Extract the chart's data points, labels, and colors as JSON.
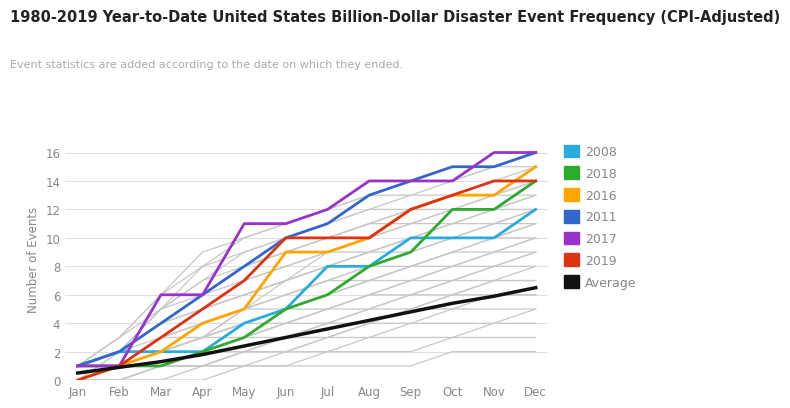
{
  "title": "1980-2019 Year-to-Date United States Billion-Dollar Disaster Event Frequency (CPI-Adjusted)",
  "subtitle": "Event statistics are added according to the date on which they ended.",
  "ylabel": "Number of Events",
  "months": [
    "Jan",
    "Feb",
    "Mar",
    "Apr",
    "May",
    "Jun",
    "Jul",
    "Aug",
    "Sep",
    "Oct",
    "Nov",
    "Dec"
  ],
  "highlighted": {
    "2008": {
      "color": "#29ABDE",
      "values": [
        1,
        2,
        2,
        2,
        4,
        5,
        8,
        8,
        10,
        10,
        10,
        12
      ]
    },
    "2018": {
      "color": "#2EAA2E",
      "values": [
        1,
        1,
        1,
        2,
        3,
        5,
        6,
        8,
        9,
        12,
        12,
        14
      ]
    },
    "2016": {
      "color": "#FFA500",
      "values": [
        0,
        1,
        2,
        4,
        5,
        9,
        9,
        10,
        12,
        13,
        13,
        15
      ]
    },
    "2011": {
      "color": "#3366CC",
      "values": [
        1,
        2,
        4,
        6,
        8,
        10,
        11,
        13,
        14,
        15,
        15,
        16
      ]
    },
    "2017": {
      "color": "#9932CC",
      "values": [
        1,
        1,
        6,
        6,
        11,
        11,
        12,
        14,
        14,
        14,
        16,
        16
      ]
    },
    "2019": {
      "color": "#DD3311",
      "values": [
        0,
        1,
        3,
        5,
        7,
        10,
        10,
        10,
        12,
        13,
        14,
        14
      ]
    },
    "Average": {
      "color": "#111111",
      "values": [
        0.5,
        0.9,
        1.3,
        1.8,
        2.4,
        3.0,
        3.6,
        4.2,
        4.8,
        5.4,
        5.9,
        6.5
      ]
    }
  },
  "background_lines": [
    [
      0,
      0,
      0,
      0,
      1,
      1,
      1,
      1,
      1,
      2,
      2,
      2
    ],
    [
      0,
      0,
      0,
      1,
      1,
      1,
      2,
      2,
      2,
      3,
      3,
      3
    ],
    [
      0,
      0,
      1,
      1,
      1,
      2,
      2,
      3,
      3,
      3,
      4,
      4
    ],
    [
      0,
      0,
      1,
      1,
      2,
      2,
      3,
      3,
      4,
      4,
      4,
      5
    ],
    [
      0,
      0,
      1,
      1,
      2,
      2,
      3,
      4,
      4,
      5,
      5,
      5
    ],
    [
      0,
      0,
      1,
      1,
      2,
      3,
      3,
      4,
      5,
      5,
      6,
      6
    ],
    [
      0,
      1,
      1,
      2,
      2,
      3,
      4,
      4,
      5,
      6,
      6,
      6
    ],
    [
      0,
      1,
      1,
      2,
      3,
      3,
      4,
      5,
      5,
      6,
      7,
      7
    ],
    [
      0,
      1,
      1,
      2,
      3,
      4,
      4,
      5,
      6,
      6,
      7,
      7
    ],
    [
      0,
      1,
      2,
      2,
      3,
      4,
      5,
      5,
      6,
      7,
      7,
      8
    ],
    [
      0,
      1,
      2,
      3,
      3,
      4,
      5,
      6,
      6,
      7,
      8,
      8
    ],
    [
      0,
      1,
      2,
      3,
      4,
      4,
      5,
      6,
      7,
      7,
      8,
      9
    ],
    [
      0,
      1,
      2,
      3,
      4,
      5,
      5,
      6,
      7,
      8,
      8,
      9
    ],
    [
      0,
      1,
      2,
      3,
      4,
      5,
      6,
      7,
      7,
      8,
      9,
      9
    ],
    [
      0,
      1,
      2,
      3,
      4,
      5,
      6,
      7,
      8,
      8,
      9,
      10
    ],
    [
      0,
      1,
      2,
      3,
      5,
      5,
      6,
      7,
      8,
      9,
      9,
      10
    ],
    [
      0,
      1,
      3,
      3,
      5,
      6,
      7,
      7,
      8,
      9,
      10,
      10
    ],
    [
      0,
      1,
      3,
      4,
      5,
      6,
      7,
      8,
      8,
      9,
      10,
      11
    ],
    [
      0,
      1,
      3,
      4,
      5,
      6,
      7,
      8,
      9,
      10,
      10,
      11
    ],
    [
      0,
      1,
      3,
      4,
      5,
      7,
      8,
      9,
      9,
      10,
      11,
      11
    ],
    [
      0,
      1,
      3,
      5,
      6,
      7,
      8,
      9,
      10,
      10,
      11,
      12
    ],
    [
      0,
      2,
      3,
      5,
      6,
      7,
      8,
      9,
      10,
      11,
      11,
      12
    ],
    [
      0,
      2,
      4,
      5,
      6,
      7,
      9,
      9,
      10,
      11,
      12,
      12
    ],
    [
      1,
      2,
      4,
      5,
      7,
      8,
      9,
      10,
      11,
      11,
      12,
      13
    ],
    [
      1,
      2,
      4,
      6,
      7,
      8,
      9,
      10,
      11,
      12,
      12,
      13
    ],
    [
      1,
      2,
      4,
      6,
      8,
      9,
      10,
      11,
      11,
      12,
      13,
      13
    ],
    [
      1,
      2,
      5,
      6,
      8,
      9,
      10,
      11,
      12,
      12,
      13,
      14
    ],
    [
      1,
      2,
      5,
      7,
      8,
      9,
      10,
      11,
      12,
      13,
      13,
      14
    ],
    [
      1,
      2,
      5,
      7,
      9,
      10,
      11,
      12,
      12,
      13,
      14,
      14
    ],
    [
      1,
      3,
      5,
      8,
      9,
      10,
      11,
      12,
      13,
      13,
      14,
      15
    ],
    [
      1,
      3,
      6,
      8,
      10,
      11,
      12,
      13,
      13,
      14,
      15,
      15
    ],
    [
      1,
      3,
      6,
      9,
      10,
      11,
      12,
      13,
      14,
      14,
      15,
      16
    ]
  ],
  "bg_line_color": "#C8C8C8",
  "ylim": [
    0,
    17
  ],
  "yticks": [
    0,
    2,
    4,
    6,
    8,
    10,
    12,
    14,
    16
  ],
  "legend_order": [
    "2008",
    "2018",
    "2016",
    "2011",
    "2017",
    "2019",
    "Average"
  ]
}
